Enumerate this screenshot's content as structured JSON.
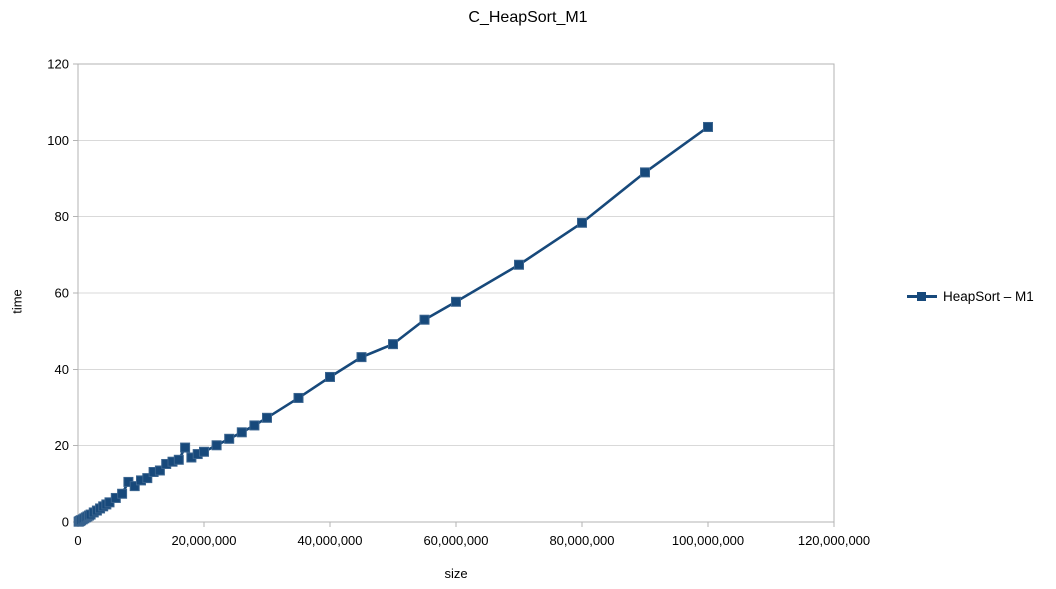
{
  "window": {
    "background": "#ffffff"
  },
  "colors": {
    "series": "#17497B",
    "series_edge": "#3A648F",
    "grid": "#d9d9d9",
    "axis": "#b3b3b3",
    "text": "#000000"
  },
  "legend": {
    "items": [
      {
        "label": "HeapSort – M1",
        "color": "#17497B"
      }
    ]
  },
  "chart_data": {
    "type": "line",
    "title": "C_HeapSort_M1",
    "xlabel": "size",
    "ylabel": "time",
    "xlim": [
      0,
      120000000
    ],
    "ylim": [
      0,
      120
    ],
    "x_ticks": [
      0,
      20000000,
      40000000,
      60000000,
      80000000,
      100000000,
      120000000
    ],
    "x_tick_labels": [
      "0",
      "20,000,000",
      "40,000,000",
      "60,000,000",
      "80,000,000",
      "100,000,000",
      "120,000,000"
    ],
    "y_ticks": [
      0,
      20,
      40,
      60,
      80,
      100,
      120
    ],
    "y_tick_labels": [
      "0",
      "20",
      "40",
      "60",
      "80",
      "100",
      "120"
    ],
    "grid": "horizontal",
    "legend_position": "right",
    "marker": "square",
    "series": [
      {
        "name": "HeapSort – M1",
        "color": "#17497B",
        "x": [
          100000,
          200000,
          300000,
          400000,
          500000,
          750000,
          1000000,
          1250000,
          1500000,
          1750000,
          2000000,
          2500000,
          3000000,
          3500000,
          4000000,
          4500000,
          5000000,
          6000000,
          7000000,
          8000000,
          9000000,
          10000000,
          11000000,
          12000000,
          13000000,
          14000000,
          15000000,
          16000000,
          17000000,
          18000000,
          19000000,
          20000000,
          22000000,
          24000000,
          26000000,
          28000000,
          30000000,
          35000000,
          40000000,
          45000000,
          50000000,
          55000000,
          60000000,
          70000000,
          80000000,
          90000000,
          100000000
        ],
        "y": [
          0.08,
          0.18,
          0.28,
          0.38,
          0.48,
          0.7,
          0.95,
          1.2,
          1.45,
          1.7,
          1.95,
          2.5,
          3.0,
          3.55,
          4.1,
          4.6,
          5.15,
          6.3,
          7.4,
          10.5,
          9.4,
          10.9,
          11.5,
          13.1,
          13.5,
          15.2,
          15.8,
          16.3,
          19.5,
          16.9,
          17.8,
          18.4,
          20.1,
          21.8,
          23.5,
          25.3,
          27.3,
          32.5,
          38.0,
          43.2,
          46.6,
          53.0,
          57.7,
          67.4,
          78.4,
          91.6,
          103.5
        ]
      }
    ]
  }
}
